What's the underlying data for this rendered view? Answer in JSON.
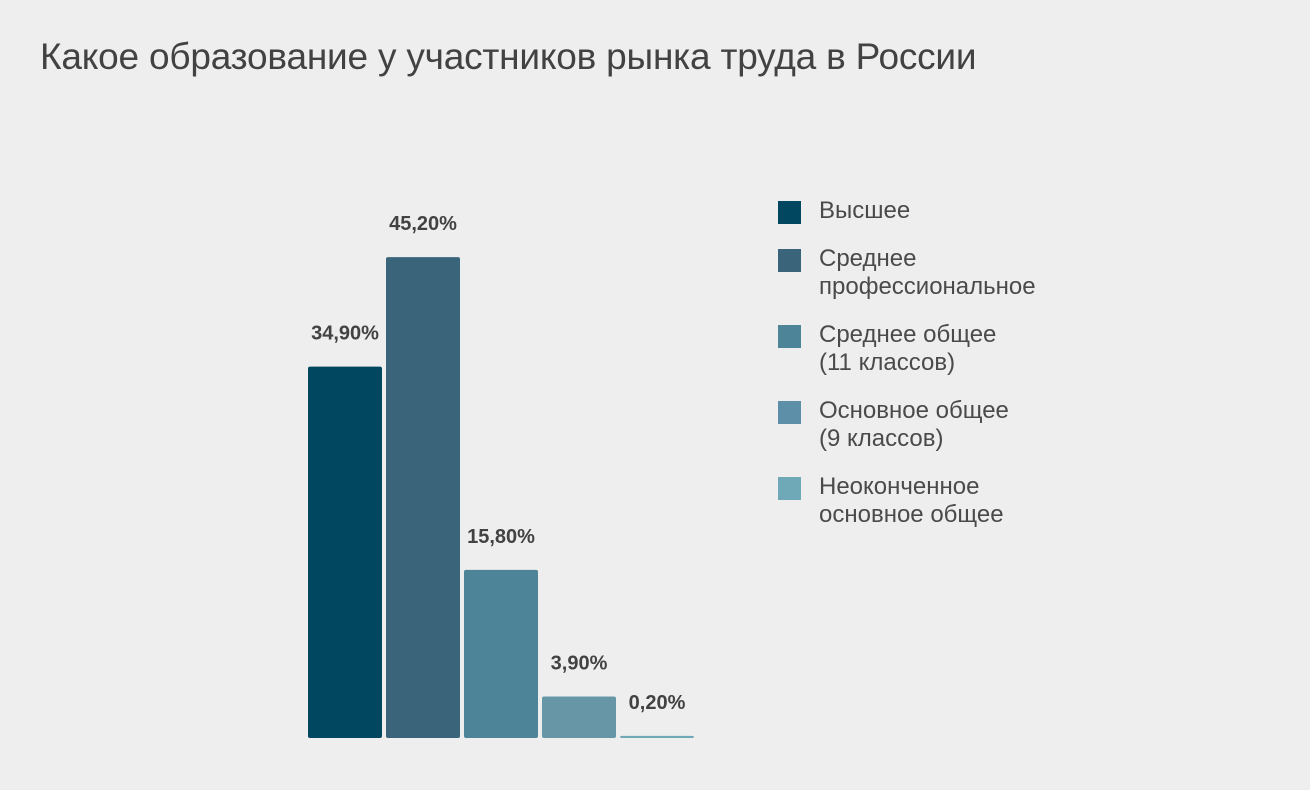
{
  "chart_data": {
    "type": "bar",
    "title": "Какое образование у участников рынка труда в России",
    "categories": [
      "Высшее",
      "Среднее профессиональное",
      "Среднее общее (11 классов)",
      "Основное общее (9 классов)",
      "Неоконченное основное общее"
    ],
    "values": [
      34.9,
      45.2,
      15.8,
      3.9,
      0.2
    ],
    "data_labels": [
      "34,90%",
      "45,20%",
      "15,80%",
      "3,90%",
      "0,20%"
    ],
    "colors": [
      "#00475f",
      "#3a6479",
      "#4d8497",
      "#6797a7",
      "#6fa8b7"
    ],
    "ylim": [
      0,
      50
    ],
    "grid": false,
    "legend_position": "right",
    "legend": [
      {
        "label": "Высшее",
        "color": "#00475f"
      },
      {
        "label": "Среднее\nпрофессиональное",
        "color": "#3a6479"
      },
      {
        "label": "Среднее общее\n(11 классов)",
        "color": "#4d8497"
      },
      {
        "label": "Основное общее\n(9 классов)",
        "color": "#5d8fa8"
      },
      {
        "label": "Неоконченное\nосновное общее",
        "color": "#6fa8b7"
      }
    ]
  }
}
